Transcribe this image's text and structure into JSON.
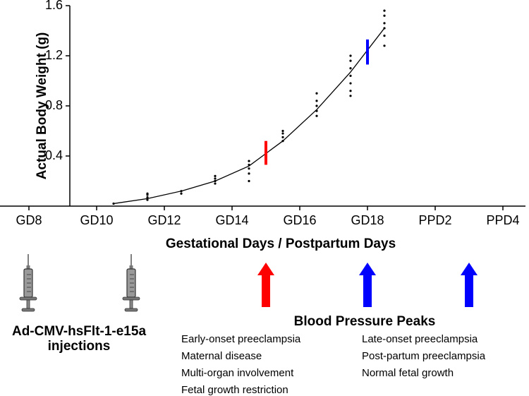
{
  "chart_data": {
    "type": "scatter",
    "y_label": "Actual Body Weight (g)",
    "x_label": "Gestational Days / Postpartum Days",
    "xlim": [
      7.5,
      22.5
    ],
    "xticks": [
      {
        "value": 8,
        "label": "GD8"
      },
      {
        "value": 10,
        "label": "GD10"
      },
      {
        "value": 12,
        "label": "GD12"
      },
      {
        "value": 14,
        "label": "GD14"
      },
      {
        "value": 16,
        "label": "GD16"
      },
      {
        "value": 18,
        "label": "GD18"
      },
      {
        "value": 20,
        "label": "PPD2"
      },
      {
        "value": 22,
        "label": "PPD4"
      }
    ],
    "ylim": [
      0,
      1.6
    ],
    "yticks": [
      0.4,
      0.8,
      1.2,
      1.6
    ],
    "points": {
      "color": "#000000",
      "x": [
        10.5,
        11.5,
        11.5,
        11.5,
        11.5,
        12.5,
        12.5,
        13.5,
        13.5,
        13.5,
        13.5,
        14.5,
        14.5,
        14.5,
        14.5,
        14.5,
        15.5,
        15.5,
        15.5,
        15.5,
        16.5,
        16.5,
        16.5,
        16.5,
        16.5,
        17.5,
        17.5,
        17.5,
        17.5,
        17.5,
        17.5,
        17.5,
        18.5,
        18.5,
        18.5,
        18.5,
        18.5,
        18.5
      ],
      "values": [
        0.02,
        0.05,
        0.07,
        0.09,
        0.1,
        0.1,
        0.12,
        0.18,
        0.2,
        0.22,
        0.24,
        0.2,
        0.26,
        0.3,
        0.33,
        0.36,
        0.52,
        0.55,
        0.58,
        0.6,
        0.72,
        0.76,
        0.8,
        0.84,
        0.9,
        0.88,
        0.92,
        0.98,
        1.04,
        1.1,
        1.16,
        1.2,
        1.28,
        1.36,
        1.42,
        1.46,
        1.52,
        1.56
      ]
    },
    "fit": {
      "color": "#000000",
      "x": [
        10.5,
        11.5,
        12.5,
        13.5,
        14.5,
        15.5,
        16.5,
        17.5,
        18.5
      ],
      "values": [
        0.02,
        0.06,
        0.12,
        0.2,
        0.32,
        0.52,
        0.77,
        1.07,
        1.42
      ]
    },
    "markers": [
      {
        "x": 15,
        "low": 0.33,
        "high": 0.52,
        "color": "#ff0000"
      },
      {
        "x": 18,
        "low": 1.13,
        "high": 1.33,
        "color": "#0000ff"
      }
    ],
    "arrows": [
      {
        "x": 15,
        "color": "#ff0000"
      },
      {
        "x": 18,
        "color": "#0000ff"
      },
      {
        "x": 21,
        "color": "#0000ff"
      }
    ],
    "injection_label": [
      "Ad-CMV-hsFlt-1-e15a",
      "injections"
    ],
    "peaks_label": "Blood Pressure Peaks",
    "early_notes": {
      "color": "#ff0000",
      "lines": [
        "Early-onset preeclampsia",
        "Maternal disease",
        "Multi-organ involvement",
        "Fetal growth restriction"
      ]
    },
    "late_notes": {
      "color": "#0000ff",
      "lines": [
        "Late-onset preeclampsia",
        "Post-partum preeclampsia",
        "Normal fetal growth"
      ]
    }
  }
}
